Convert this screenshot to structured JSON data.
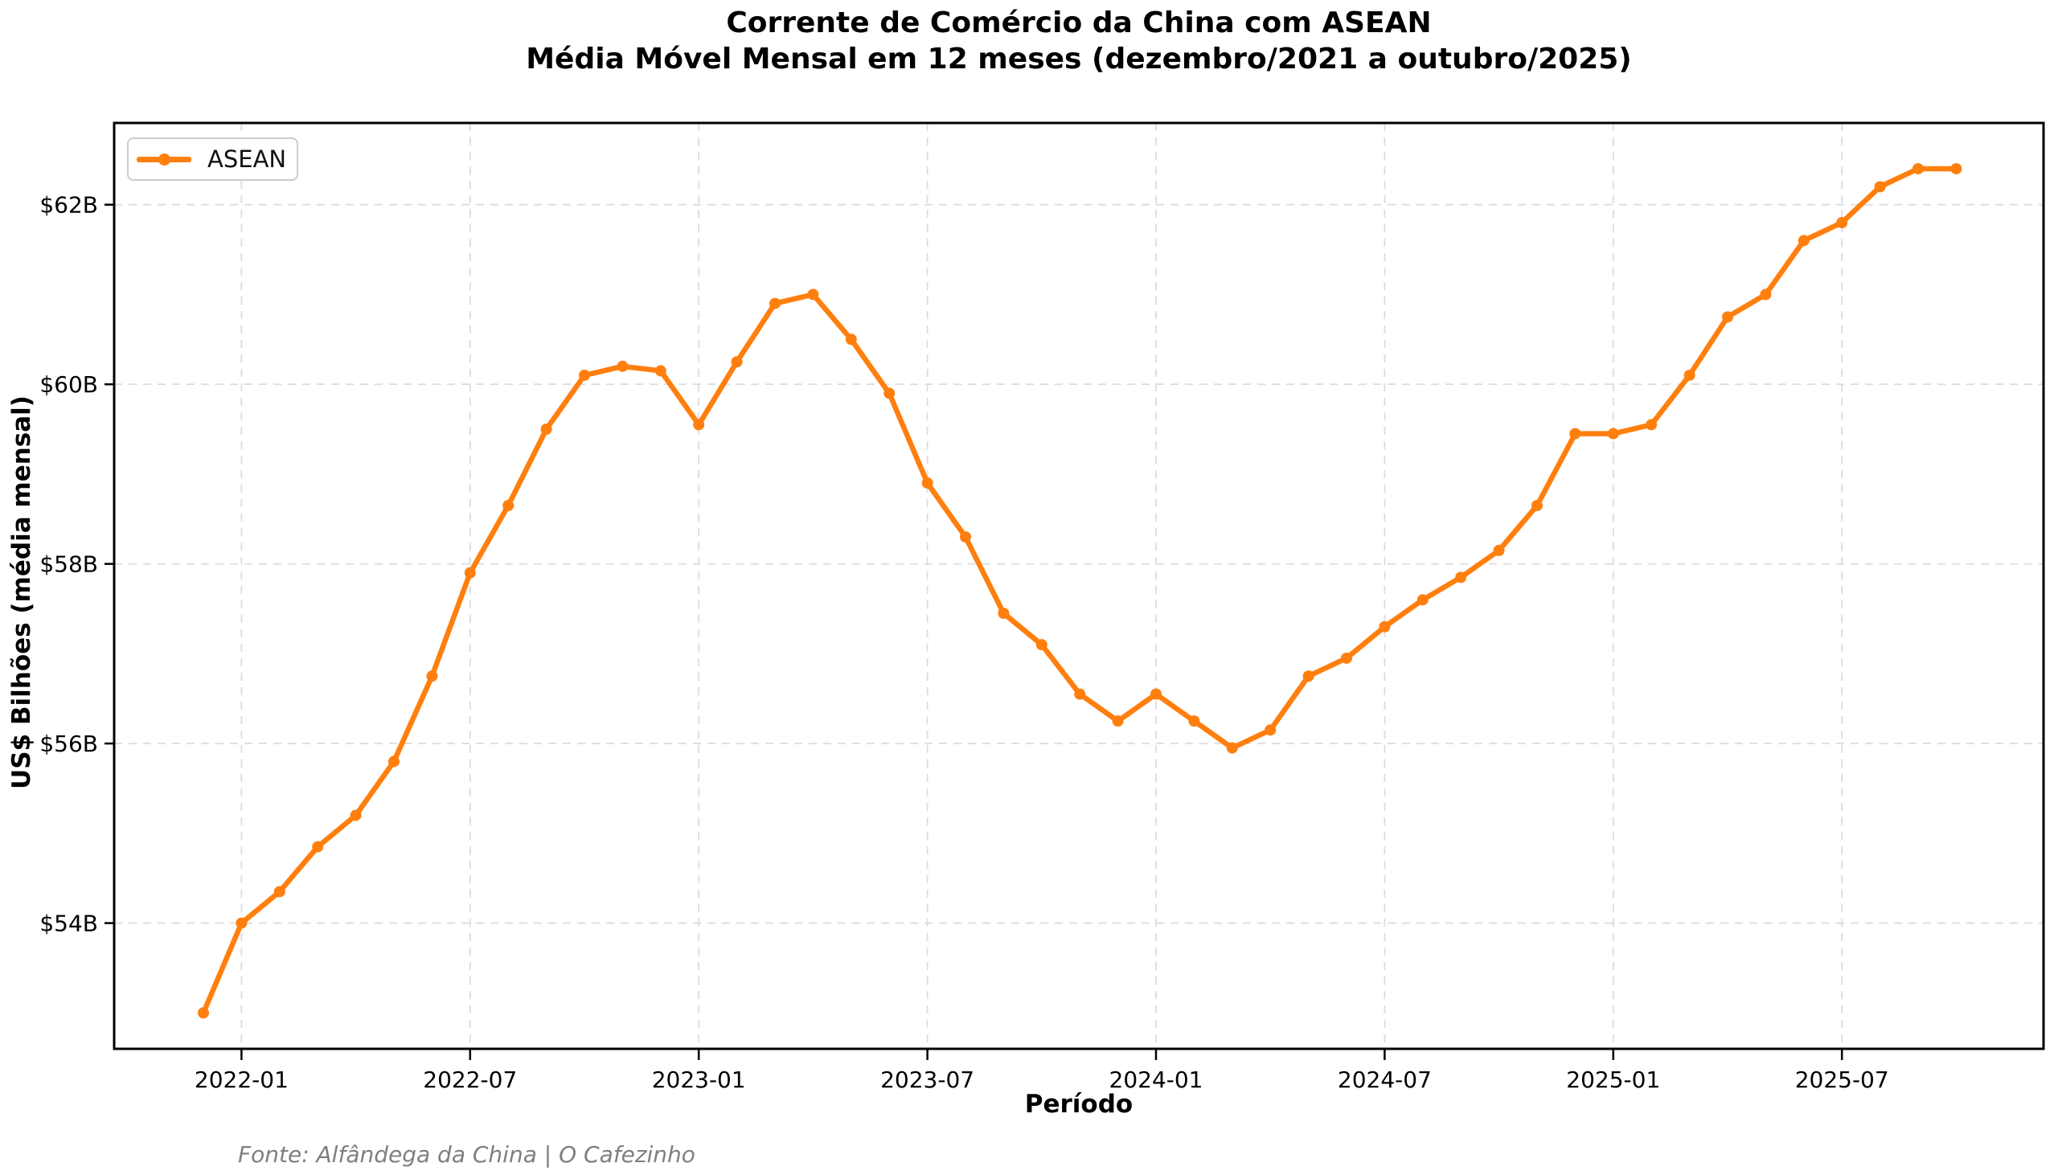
{
  "title": {
    "line1": "Corrente de Comércio da China com ASEAN",
    "line2": "Média Móvel Mensal em 12 meses (dezembro/2021 a outubro/2025)"
  },
  "legend": {
    "label": "ASEAN"
  },
  "footer": {
    "source": "Fonte: Alfândega da China | O Cafezinho"
  },
  "colors": {
    "line": "#ff7f0e",
    "grid": "#dcdcdc",
    "spine": "#000000",
    "tick_text": "#000000",
    "footer_text": "#7f7f7f",
    "legend_border": "#cccccc"
  },
  "chart_data": {
    "type": "line",
    "title": "Corrente de Comércio da China com ASEAN — Média Móvel Mensal em 12 meses (dezembro/2021 a outubro/2025)",
    "xlabel": "Período",
    "ylabel": "US$ Bilhões (média mensal)",
    "grid": true,
    "legend_position": "upper left",
    "ylim": [
      52.6,
      62.91
    ],
    "yticks": {
      "values": [
        54,
        56,
        58,
        60,
        62
      ],
      "labels": [
        "$54B",
        "$56B",
        "$58B",
        "$60B",
        "$62B"
      ]
    },
    "xticks": {
      "labels": [
        "2022-01",
        "2022-07",
        "2023-01",
        "2023-07",
        "2024-01",
        "2024-07",
        "2025-01",
        "2025-07"
      ]
    },
    "x": [
      "2021-12",
      "2022-01",
      "2022-02",
      "2022-03",
      "2022-04",
      "2022-05",
      "2022-06",
      "2022-07",
      "2022-08",
      "2022-09",
      "2022-10",
      "2022-11",
      "2022-12",
      "2023-01",
      "2023-02",
      "2023-03",
      "2023-04",
      "2023-05",
      "2023-06",
      "2023-07",
      "2023-08",
      "2023-09",
      "2023-10",
      "2023-11",
      "2023-12",
      "2024-01",
      "2024-02",
      "2024-03",
      "2024-04",
      "2024-05",
      "2024-06",
      "2024-07",
      "2024-08",
      "2024-09",
      "2024-10",
      "2024-11",
      "2024-12",
      "2025-01",
      "2025-02",
      "2025-03",
      "2025-04",
      "2025-05",
      "2025-06",
      "2025-07",
      "2025-08",
      "2025-09",
      "2025-10"
    ],
    "series": [
      {
        "name": "ASEAN",
        "color": "#ff7f0e",
        "values": [
          53.0,
          54.0,
          54.35,
          54.85,
          55.2,
          55.8,
          56.75,
          57.9,
          58.65,
          59.5,
          60.1,
          60.2,
          60.15,
          59.55,
          60.25,
          60.9,
          61.0,
          60.5,
          59.9,
          58.9,
          58.3,
          57.45,
          57.1,
          56.55,
          56.25,
          56.55,
          56.25,
          55.95,
          56.15,
          56.75,
          56.95,
          57.3,
          57.6,
          57.85,
          58.15,
          58.65,
          59.45,
          59.45,
          59.55,
          60.1,
          60.75,
          61.0,
          61.6,
          61.8,
          62.2,
          62.4,
          62.4
        ]
      }
    ]
  }
}
